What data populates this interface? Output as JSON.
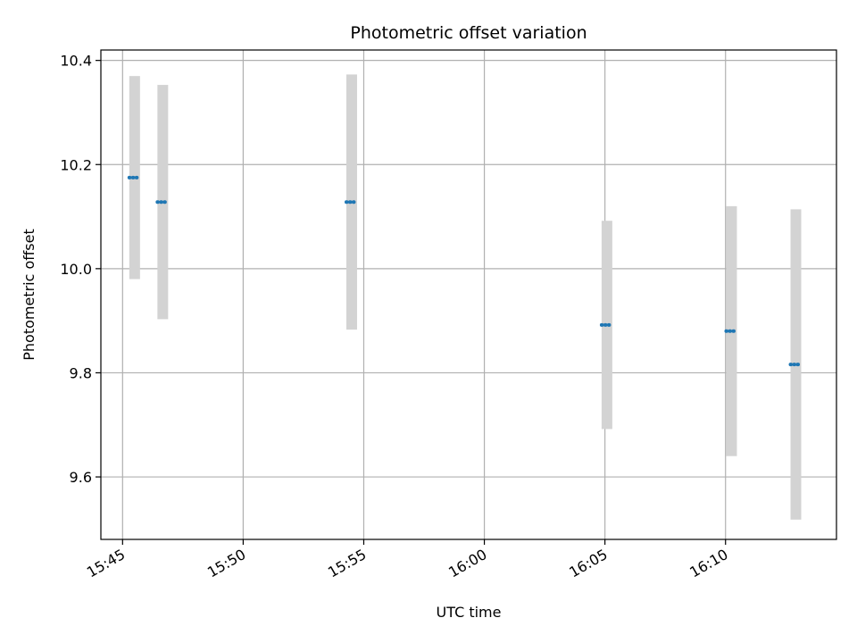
{
  "chart_data": {
    "type": "scatter",
    "title": "Photometric offset variation",
    "xlabel": "UTC time",
    "ylabel": "Photometric offset",
    "x_ticks": [
      "15:45",
      "15:50",
      "15:55",
      "16:00",
      "16:05",
      "16:10"
    ],
    "x_tick_minutes": [
      945,
      950,
      955,
      960,
      965,
      970
    ],
    "xlim_minutes": [
      944.1,
      974.6
    ],
    "y_ticks": [
      "9.6",
      "9.8",
      "10.0",
      "10.2",
      "10.4"
    ],
    "y_tick_values": [
      9.6,
      9.8,
      10.0,
      10.2,
      10.4
    ],
    "ylim": [
      9.48,
      10.42
    ],
    "grid": true,
    "colors": {
      "points": "#1f77b4",
      "errorbars": "#d3d3d3",
      "grid": "#b0b0b0"
    },
    "series": [
      {
        "points": [
          {
            "x": "15:45:30",
            "y": 10.175,
            "err": 0.195
          },
          {
            "x": "15:46:40",
            "y": 10.128,
            "err": 0.225
          },
          {
            "x": "15:54:30",
            "y": 10.128,
            "err": 0.245
          },
          {
            "x": "16:05:05",
            "y": 9.892,
            "err": 0.2
          },
          {
            "x": "16:10:15",
            "y": 9.88,
            "err": 0.24
          },
          {
            "x": "16:12:55",
            "y": 9.816,
            "err": 0.298
          }
        ]
      }
    ]
  }
}
